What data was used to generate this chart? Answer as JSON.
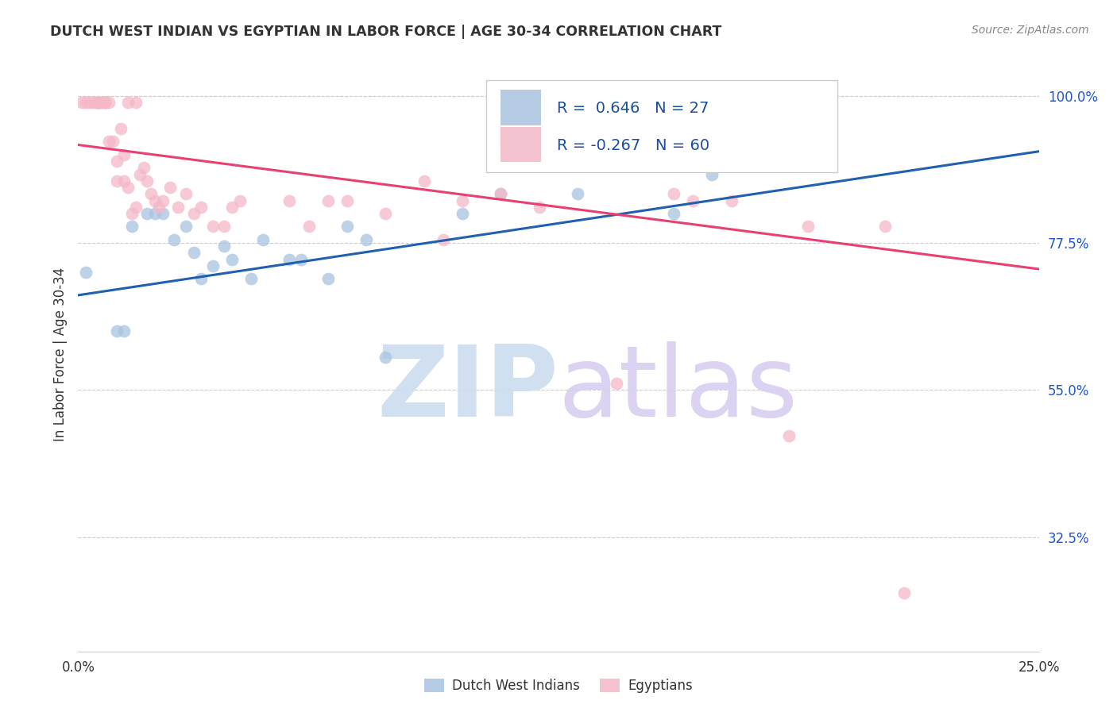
{
  "title": "DUTCH WEST INDIAN VS EGYPTIAN IN LABOR FORCE | AGE 30-34 CORRELATION CHART",
  "source": "Source: ZipAtlas.com",
  "ylabel": "In Labor Force | Age 30-34",
  "blue_color": "#a8c4e0",
  "pink_color": "#f4b8c8",
  "blue_line_color": "#2060b0",
  "pink_line_color": "#e84070",
  "x_min": 0.0,
  "x_max": 0.25,
  "y_min": 0.15,
  "y_max": 1.06,
  "y_ticks": [
    1.0,
    0.775,
    0.55,
    0.325
  ],
  "y_tick_labels": [
    "100.0%",
    "77.5%",
    "55.0%",
    "32.5%"
  ],
  "x_ticks": [
    0.0,
    0.05,
    0.1,
    0.15,
    0.2,
    0.25
  ],
  "x_tick_labels": [
    "0.0%",
    "",
    "",
    "",
    "",
    "25.0%"
  ],
  "blue_x": [
    0.002,
    0.01,
    0.012,
    0.014,
    0.018,
    0.02,
    0.022,
    0.025,
    0.028,
    0.03,
    0.032,
    0.035,
    0.038,
    0.04,
    0.045,
    0.048,
    0.055,
    0.058,
    0.065,
    0.07,
    0.075,
    0.08,
    0.1,
    0.11,
    0.13,
    0.155,
    0.165
  ],
  "blue_y": [
    0.73,
    0.64,
    0.64,
    0.8,
    0.82,
    0.82,
    0.82,
    0.78,
    0.8,
    0.76,
    0.72,
    0.74,
    0.77,
    0.75,
    0.72,
    0.78,
    0.75,
    0.75,
    0.72,
    0.8,
    0.78,
    0.6,
    0.82,
    0.85,
    0.85,
    0.82,
    0.88
  ],
  "pink_x": [
    0.001,
    0.002,
    0.003,
    0.004,
    0.005,
    0.005,
    0.005,
    0.005,
    0.006,
    0.006,
    0.007,
    0.007,
    0.007,
    0.008,
    0.008,
    0.009,
    0.01,
    0.01,
    0.011,
    0.012,
    0.012,
    0.013,
    0.013,
    0.014,
    0.015,
    0.015,
    0.016,
    0.017,
    0.018,
    0.019,
    0.02,
    0.021,
    0.022,
    0.024,
    0.026,
    0.028,
    0.03,
    0.032,
    0.035,
    0.038,
    0.04,
    0.042,
    0.055,
    0.06,
    0.065,
    0.07,
    0.08,
    0.09,
    0.095,
    0.1,
    0.11,
    0.12,
    0.14,
    0.155,
    0.16,
    0.17,
    0.185,
    0.19,
    0.21,
    0.215
  ],
  "pink_y": [
    0.99,
    0.99,
    0.99,
    0.99,
    0.99,
    0.99,
    0.99,
    0.99,
    0.99,
    0.99,
    0.99,
    0.99,
    0.99,
    0.99,
    0.93,
    0.93,
    0.9,
    0.87,
    0.95,
    0.91,
    0.87,
    0.99,
    0.86,
    0.82,
    0.99,
    0.83,
    0.88,
    0.89,
    0.87,
    0.85,
    0.84,
    0.83,
    0.84,
    0.86,
    0.83,
    0.85,
    0.82,
    0.83,
    0.8,
    0.8,
    0.83,
    0.84,
    0.84,
    0.8,
    0.84,
    0.84,
    0.82,
    0.87,
    0.78,
    0.84,
    0.85,
    0.83,
    0.56,
    0.85,
    0.84,
    0.84,
    0.48,
    0.8,
    0.8,
    0.24
  ],
  "blue_trend_x": [
    0.0,
    0.25
  ],
  "blue_trend_y": [
    0.695,
    0.915
  ],
  "pink_trend_x": [
    0.0,
    0.25
  ],
  "pink_trend_y": [
    0.925,
    0.735
  ],
  "legend_blue_r": "R =  0.646",
  "legend_blue_n": "N = 27",
  "legend_pink_r": "R = -0.267",
  "legend_pink_n": "N = 60",
  "legend_text_color": "#1a4fa0",
  "watermark_zip_color": "#ccddf0",
  "watermark_atlas_color": "#d8cff0"
}
